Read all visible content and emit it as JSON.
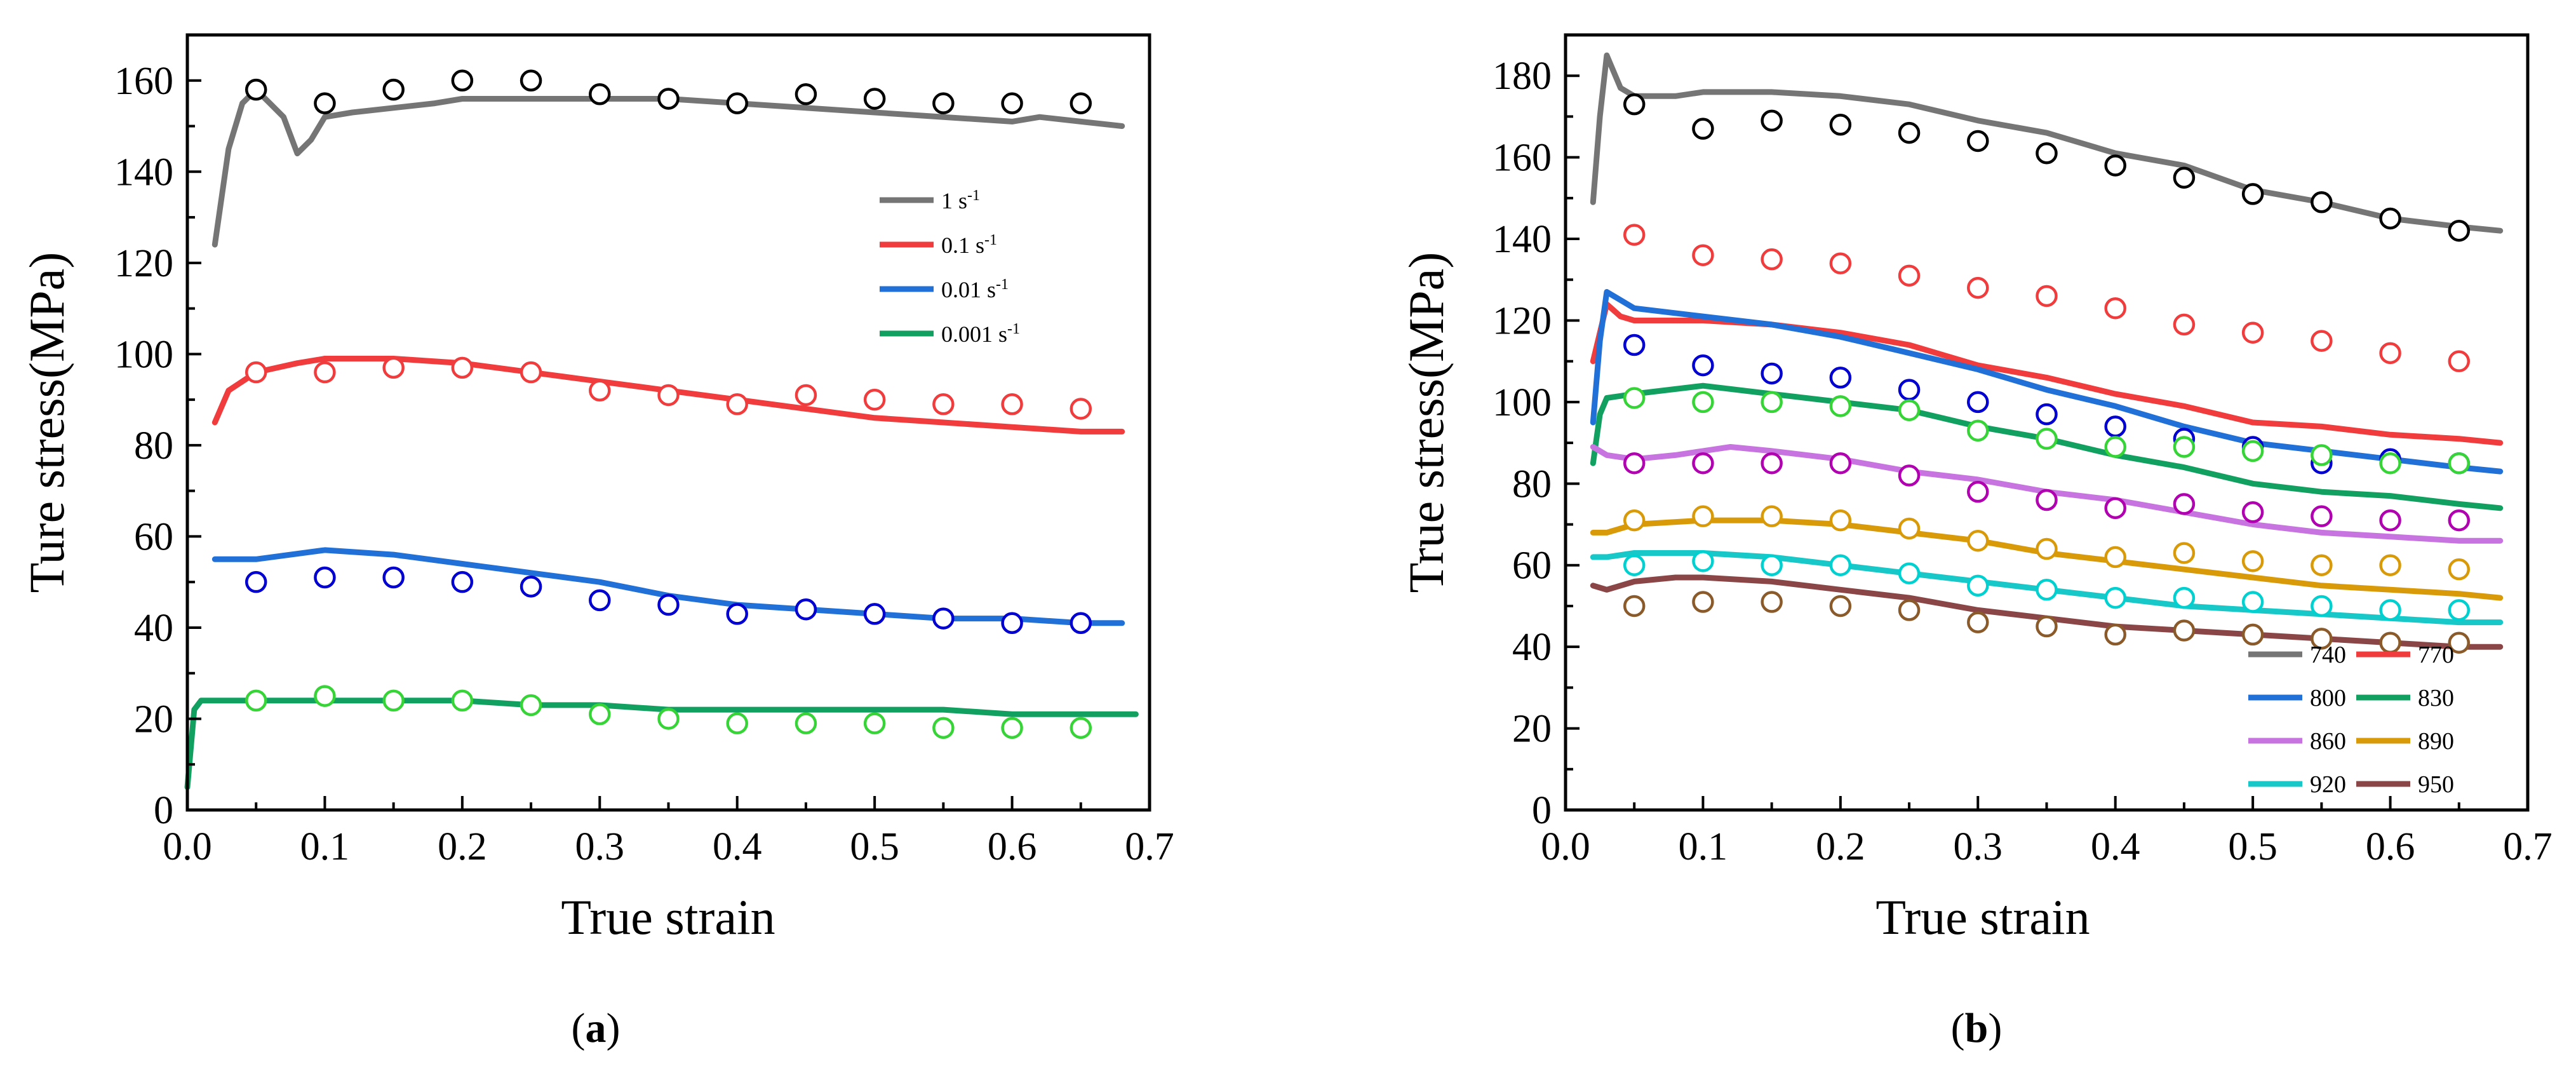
{
  "chart_data": [
    {
      "id": "a",
      "type": "line",
      "panel_label": "a",
      "xlabel": "True strain",
      "ylabel": "Ture stress(MPa)",
      "xlim": [
        0,
        0.7
      ],
      "ylim": [
        0,
        170
      ],
      "xticks": [
        0.0,
        0.1,
        0.2,
        0.3,
        0.4,
        0.5,
        0.6,
        0.7
      ],
      "xtick_labels": [
        "0.0",
        "0.1",
        "0.2",
        "0.3",
        "0.4",
        "0.5",
        "0.6",
        "0.7"
      ],
      "yticks": [
        0,
        20,
        40,
        60,
        80,
        100,
        120,
        140,
        160
      ],
      "ytick_labels": [
        "0",
        "20",
        "40",
        "60",
        "80",
        "100",
        "120",
        "140",
        "160"
      ],
      "legend_position": "upper-right",
      "series": [
        {
          "name": "1 s",
          "superscript": "-1",
          "color": "#757575",
          "marker_color": "#000000",
          "line": {
            "x": [
              0.02,
              0.03,
              0.04,
              0.05,
              0.06,
              0.07,
              0.08,
              0.09,
              0.1,
              0.12,
              0.15,
              0.18,
              0.2,
              0.25,
              0.3,
              0.35,
              0.4,
              0.45,
              0.5,
              0.55,
              0.6,
              0.62,
              0.65,
              0.68
            ],
            "y": [
              124,
              145,
              155,
              158,
              155,
              152,
              144,
              147,
              152,
              153,
              154,
              155,
              156,
              156,
              156,
              156,
              155,
              154,
              153,
              152,
              151,
              152,
              151,
              150
            ]
          },
          "points": {
            "x": [
              0.05,
              0.1,
              0.15,
              0.2,
              0.25,
              0.3,
              0.35,
              0.4,
              0.45,
              0.5,
              0.55,
              0.6,
              0.65
            ],
            "y": [
              158,
              155,
              158,
              160,
              160,
              157,
              156,
              155,
              157,
              156,
              155,
              155,
              155
            ]
          }
        },
        {
          "name": "0.1 s",
          "superscript": "-1",
          "color": "#f03c3c",
          "marker_color": "#f03c3c",
          "line": {
            "x": [
              0.02,
              0.03,
              0.05,
              0.08,
              0.1,
              0.15,
              0.2,
              0.25,
              0.3,
              0.35,
              0.4,
              0.45,
              0.5,
              0.55,
              0.6,
              0.65,
              0.68
            ],
            "y": [
              85,
              92,
              96,
              98,
              99,
              99,
              98,
              96,
              94,
              92,
              90,
              88,
              86,
              85,
              84,
              83,
              83
            ]
          },
          "points": {
            "x": [
              0.05,
              0.1,
              0.15,
              0.2,
              0.25,
              0.3,
              0.35,
              0.4,
              0.45,
              0.5,
              0.55,
              0.6,
              0.65
            ],
            "y": [
              96,
              96,
              97,
              97,
              96,
              92,
              91,
              89,
              91,
              90,
              89,
              89,
              88
            ]
          }
        },
        {
          "name": "0.01 s",
          "superscript": "-1",
          "color": "#2170d8",
          "marker_color": "#0000d0",
          "line": {
            "x": [
              0.02,
              0.05,
              0.1,
              0.15,
              0.2,
              0.25,
              0.3,
              0.35,
              0.4,
              0.45,
              0.5,
              0.55,
              0.6,
              0.65,
              0.68
            ],
            "y": [
              55,
              55,
              57,
              56,
              54,
              52,
              50,
              47,
              45,
              44,
              43,
              42,
              42,
              41,
              41
            ]
          },
          "points": {
            "x": [
              0.05,
              0.1,
              0.15,
              0.2,
              0.25,
              0.3,
              0.35,
              0.4,
              0.45,
              0.5,
              0.55,
              0.6,
              0.65
            ],
            "y": [
              50,
              51,
              51,
              50,
              49,
              46,
              45,
              43,
              44,
              43,
              42,
              41,
              41
            ]
          }
        },
        {
          "name": "0.001 s",
          "superscript": "-1",
          "color": "#12a060",
          "marker_color": "#36d436",
          "line": {
            "x": [
              0.0,
              0.005,
              0.01,
              0.02,
              0.05,
              0.1,
              0.15,
              0.2,
              0.25,
              0.3,
              0.35,
              0.4,
              0.45,
              0.5,
              0.55,
              0.6,
              0.65,
              0.69
            ],
            "y": [
              5,
              22,
              24,
              24,
              24,
              24,
              24,
              24,
              23,
              23,
              22,
              22,
              22,
              22,
              22,
              21,
              21,
              21
            ]
          },
          "points": {
            "x": [
              0.05,
              0.1,
              0.15,
              0.2,
              0.25,
              0.3,
              0.35,
              0.4,
              0.45,
              0.5,
              0.55,
              0.6,
              0.65
            ],
            "y": [
              24,
              25,
              24,
              24,
              23,
              21,
              20,
              19,
              19,
              19,
              18,
              18,
              18
            ]
          }
        }
      ]
    },
    {
      "id": "b",
      "type": "line",
      "panel_label": "b",
      "xlabel": "True strain",
      "ylabel": "True stress(MPa)",
      "xlim": [
        0,
        0.7
      ],
      "ylim": [
        0,
        190
      ],
      "xticks": [
        0.0,
        0.1,
        0.2,
        0.3,
        0.4,
        0.5,
        0.6,
        0.7
      ],
      "xtick_labels": [
        "0.0",
        "0.1",
        "0.2",
        "0.3",
        "0.4",
        "0.5",
        "0.6",
        "0.7"
      ],
      "yticks": [
        0,
        20,
        40,
        60,
        80,
        100,
        120,
        140,
        160,
        180
      ],
      "ytick_labels": [
        "0",
        "20",
        "40",
        "60",
        "80",
        "100",
        "120",
        "140",
        "160",
        "180"
      ],
      "legend_position": "bottom-right",
      "series": [
        {
          "name": "740",
          "color": "#757575",
          "marker_color": "#000000",
          "line": {
            "x": [
              0.02,
              0.025,
              0.03,
              0.04,
              0.05,
              0.08,
              0.1,
              0.15,
              0.2,
              0.25,
              0.3,
              0.35,
              0.4,
              0.45,
              0.5,
              0.55,
              0.6,
              0.65,
              0.68
            ],
            "y": [
              149,
              170,
              185,
              177,
              175,
              175,
              176,
              176,
              175,
              173,
              169,
              166,
              161,
              158,
              152,
              149,
              145,
              143,
              142
            ]
          },
          "points": {
            "x": [
              0.05,
              0.1,
              0.15,
              0.2,
              0.25,
              0.3,
              0.35,
              0.4,
              0.45,
              0.5,
              0.55,
              0.6,
              0.65
            ],
            "y": [
              173,
              167,
              169,
              168,
              166,
              164,
              161,
              158,
              155,
              151,
              149,
              145,
              142
            ]
          }
        },
        {
          "name": "770",
          "color": "#f03c3c",
          "marker_color": "#f03c3c",
          "line": {
            "x": [
              0.02,
              0.03,
              0.04,
              0.05,
              0.1,
              0.15,
              0.2,
              0.25,
              0.3,
              0.35,
              0.4,
              0.45,
              0.5,
              0.55,
              0.6,
              0.65,
              0.68
            ],
            "y": [
              110,
              124,
              121,
              120,
              120,
              119,
              117,
              114,
              109,
              106,
              102,
              99,
              95,
              94,
              92,
              91,
              90
            ]
          },
          "points": {
            "x": [
              0.05,
              0.1,
              0.15,
              0.2,
              0.25,
              0.3,
              0.35,
              0.4,
              0.45,
              0.5,
              0.55,
              0.6,
              0.65
            ],
            "y": [
              141,
              136,
              135,
              134,
              131,
              128,
              126,
              123,
              119,
              117,
              115,
              112,
              110
            ]
          }
        },
        {
          "name": "800",
          "color": "#2170d8",
          "marker_color": "#0000d0",
          "line": {
            "x": [
              0.02,
              0.025,
              0.03,
              0.04,
              0.05,
              0.1,
              0.15,
              0.2,
              0.25,
              0.3,
              0.35,
              0.4,
              0.45,
              0.5,
              0.55,
              0.6,
              0.65,
              0.68
            ],
            "y": [
              95,
              115,
              127,
              125,
              123,
              121,
              119,
              116,
              112,
              108,
              103,
              99,
              94,
              90,
              88,
              86,
              84,
              83
            ]
          },
          "points": {
            "x": [
              0.05,
              0.1,
              0.15,
              0.2,
              0.25,
              0.3,
              0.35,
              0.4,
              0.45,
              0.5,
              0.55,
              0.6,
              0.65
            ],
            "y": [
              114,
              109,
              107,
              106,
              103,
              100,
              97,
              94,
              91,
              89,
              85,
              86,
              85
            ]
          }
        },
        {
          "name": "830",
          "color": "#12a060",
          "marker_color": "#36d436",
          "line": {
            "x": [
              0.02,
              0.025,
              0.03,
              0.05,
              0.1,
              0.15,
              0.2,
              0.25,
              0.3,
              0.35,
              0.4,
              0.45,
              0.5,
              0.55,
              0.6,
              0.65,
              0.68
            ],
            "y": [
              85,
              97,
              101,
              102,
              104,
              102,
              100,
              98,
              94,
              91,
              87,
              84,
              80,
              78,
              77,
              75,
              74
            ]
          },
          "points": {
            "x": [
              0.05,
              0.1,
              0.15,
              0.2,
              0.25,
              0.3,
              0.35,
              0.4,
              0.45,
              0.5,
              0.55,
              0.6,
              0.65
            ],
            "y": [
              101,
              100,
              100,
              99,
              98,
              93,
              91,
              89,
              89,
              88,
              87,
              85,
              85
            ]
          }
        },
        {
          "name": "860",
          "color": "#c874e0",
          "marker_color": "#b000b0",
          "line": {
            "x": [
              0.02,
              0.03,
              0.05,
              0.08,
              0.1,
              0.12,
              0.15,
              0.2,
              0.25,
              0.3,
              0.35,
              0.4,
              0.45,
              0.5,
              0.55,
              0.6,
              0.65,
              0.68
            ],
            "y": [
              89,
              87,
              86,
              87,
              88,
              89,
              88,
              86,
              83,
              81,
              78,
              76,
              73,
              70,
              68,
              67,
              66,
              66
            ]
          },
          "points": {
            "x": [
              0.05,
              0.1,
              0.15,
              0.2,
              0.25,
              0.3,
              0.35,
              0.4,
              0.45,
              0.5,
              0.55,
              0.6,
              0.65
            ],
            "y": [
              85,
              85,
              85,
              85,
              82,
              78,
              76,
              74,
              75,
              73,
              72,
              71,
              71
            ]
          }
        },
        {
          "name": "890",
          "color": "#d99a0a",
          "marker_color": "#d99a0a",
          "line": {
            "x": [
              0.02,
              0.03,
              0.05,
              0.1,
              0.15,
              0.2,
              0.25,
              0.3,
              0.35,
              0.4,
              0.45,
              0.5,
              0.55,
              0.6,
              0.65,
              0.68
            ],
            "y": [
              68,
              68,
              70,
              71,
              71,
              70,
              68,
              66,
              63,
              61,
              59,
              57,
              55,
              54,
              53,
              52
            ]
          },
          "points": {
            "x": [
              0.05,
              0.1,
              0.15,
              0.2,
              0.25,
              0.3,
              0.35,
              0.4,
              0.45,
              0.5,
              0.55,
              0.6,
              0.65
            ],
            "y": [
              71,
              72,
              72,
              71,
              69,
              66,
              64,
              62,
              63,
              61,
              60,
              60,
              59
            ]
          }
        },
        {
          "name": "920",
          "color": "#18c8c8",
          "marker_color": "#00d0d0",
          "line": {
            "x": [
              0.02,
              0.03,
              0.05,
              0.1,
              0.15,
              0.2,
              0.25,
              0.3,
              0.35,
              0.4,
              0.45,
              0.5,
              0.55,
              0.6,
              0.65,
              0.68
            ],
            "y": [
              62,
              62,
              63,
              63,
              62,
              60,
              58,
              56,
              54,
              52,
              50,
              49,
              48,
              47,
              46,
              46
            ]
          },
          "points": {
            "x": [
              0.05,
              0.1,
              0.15,
              0.2,
              0.25,
              0.3,
              0.35,
              0.4,
              0.45,
              0.5,
              0.55,
              0.6,
              0.65
            ],
            "y": [
              60,
              61,
              60,
              60,
              58,
              55,
              54,
              52,
              52,
              51,
              50,
              49,
              49
            ]
          }
        },
        {
          "name": "950",
          "color": "#8a4646",
          "marker_color": "#8a5a2a",
          "line": {
            "x": [
              0.02,
              0.03,
              0.05,
              0.08,
              0.1,
              0.15,
              0.2,
              0.25,
              0.3,
              0.35,
              0.4,
              0.45,
              0.5,
              0.55,
              0.6,
              0.65,
              0.68
            ],
            "y": [
              55,
              54,
              56,
              57,
              57,
              56,
              54,
              52,
              49,
              47,
              45,
              44,
              43,
              42,
              41,
              40,
              40
            ]
          },
          "points": {
            "x": [
              0.05,
              0.1,
              0.15,
              0.2,
              0.25,
              0.3,
              0.35,
              0.4,
              0.45,
              0.5,
              0.55,
              0.6,
              0.65
            ],
            "y": [
              50,
              51,
              51,
              50,
              49,
              46,
              45,
              43,
              44,
              43,
              42,
              41,
              41
            ]
          }
        }
      ]
    }
  ]
}
